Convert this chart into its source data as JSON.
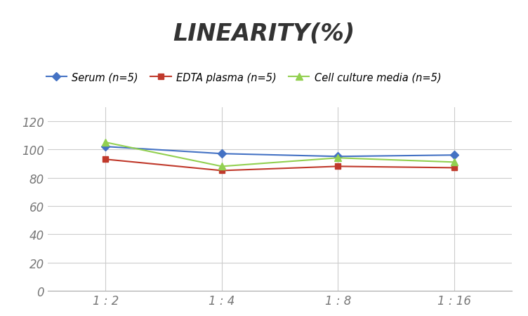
{
  "title": "LINEARITY(%)",
  "x_labels": [
    "1 : 2",
    "1 : 4",
    "1 : 8",
    "1 : 16"
  ],
  "x_positions": [
    0,
    1,
    2,
    3
  ],
  "series": [
    {
      "label": "Serum (n=5)",
      "values": [
        102,
        97,
        95,
        96
      ],
      "color": "#4472C4",
      "marker": "D",
      "marker_size": 6,
      "linewidth": 1.5
    },
    {
      "label": "EDTA plasma (n=5)",
      "values": [
        93,
        85,
        88,
        87
      ],
      "color": "#C0392B",
      "marker": "s",
      "marker_size": 6,
      "linewidth": 1.5
    },
    {
      "label": "Cell culture media (n=5)",
      "values": [
        105,
        88,
        94,
        91
      ],
      "color": "#92D050",
      "marker": "^",
      "marker_size": 7,
      "linewidth": 1.5
    }
  ],
  "ylim": [
    0,
    130
  ],
  "yticks": [
    0,
    20,
    40,
    60,
    80,
    100,
    120
  ],
  "background_color": "#ffffff",
  "grid_color": "#cccccc",
  "title_fontsize": 24,
  "title_style": "italic",
  "title_weight": "bold",
  "legend_fontsize": 10.5,
  "tick_fontsize": 12,
  "tick_color": "#777777"
}
